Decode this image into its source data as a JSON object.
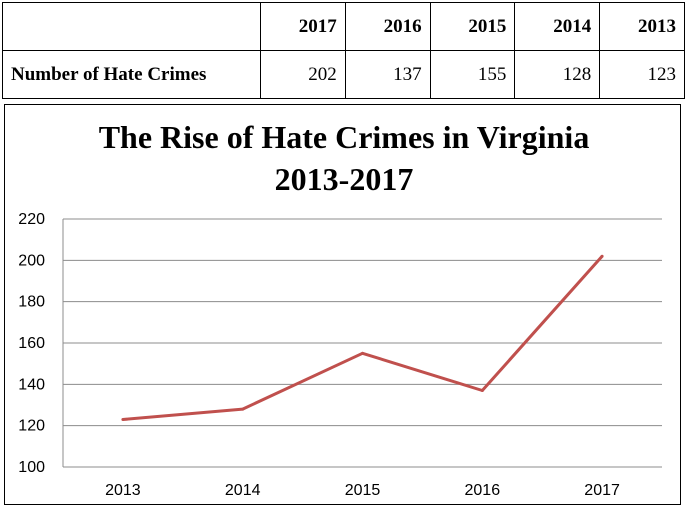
{
  "table": {
    "row_label": "Number of Hate Crimes",
    "headers": [
      "2017",
      "2016",
      "2015",
      "2014",
      "2013"
    ],
    "values": [
      "202",
      "137",
      "155",
      "128",
      "123"
    ]
  },
  "chart_data": {
    "type": "line",
    "title": "The Rise of Hate Crimes in Virginia 2013-2017",
    "title_lines": [
      "The Rise of Hate Crimes in Virginia",
      "2013-2017"
    ],
    "categories": [
      "2013",
      "2014",
      "2015",
      "2016",
      "2017"
    ],
    "series": [
      {
        "values": [
          123,
          128,
          155,
          137,
          202
        ],
        "color": "#c0504d"
      }
    ],
    "ylim": [
      100,
      220
    ],
    "yticks": [
      100,
      120,
      140,
      160,
      180,
      200,
      220
    ],
    "grid": true,
    "legend": "none"
  }
}
